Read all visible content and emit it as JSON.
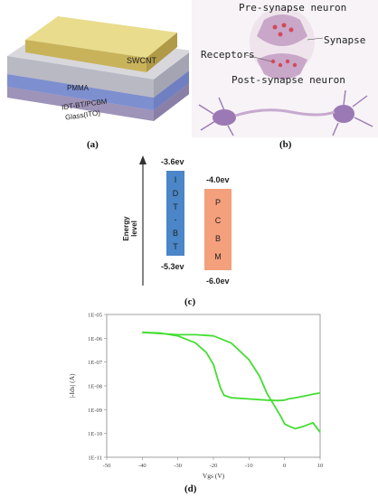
{
  "panel_a": {
    "labels": [
      "SWCNT",
      "PMMA",
      "IDT-BT/PCBM",
      "Glass(ITO)"
    ],
    "caption": "(a)"
  },
  "panel_b": {
    "pre_label": "Pre-synapse neuron",
    "synapse_label": "Synapse",
    "receptors_label": "Receptors",
    "post_label": "Post-synapse neuron",
    "caption": "(b)"
  },
  "panel_c": {
    "axis_label": "Energy level",
    "idt": {
      "top": "-3.6ev",
      "bottom": "-5.3ev",
      "chars": [
        "I",
        "D",
        "T",
        "-",
        "B",
        "T"
      ],
      "color": "#4a86c8"
    },
    "pcbm": {
      "top": "-4.0ev",
      "bottom": "-6.0ev",
      "chars": [
        "P",
        "C",
        "B",
        "M"
      ],
      "color": "#f4a07c"
    },
    "caption": "(c)"
  },
  "panel_d": {
    "caption": "(d)",
    "chart_data": {
      "type": "line",
      "xlabel": "Vgs (V)",
      "ylabel": "|-Ids| (A)",
      "xlim": [
        -50,
        10
      ],
      "ylim_log10": [
        -11,
        -5
      ],
      "xticks": [
        "-50",
        "-40",
        "-30",
        "-20",
        "-10",
        "0",
        "10"
      ],
      "yticks": [
        "1E-11",
        "1E-10",
        "1E-09",
        "1E-08",
        "1E-07",
        "1E-06",
        "1E-05"
      ],
      "log_y": true,
      "grid": false,
      "color": "#44dd33",
      "series": [
        {
          "x": [
            -40,
            -35,
            -30,
            -25,
            -20,
            -15,
            -10,
            -7,
            -5,
            -3,
            -1,
            0,
            1,
            3,
            5,
            8,
            10
          ],
          "log10_y": [
            -5.75,
            -5.8,
            -5.85,
            -5.85,
            -5.9,
            -6.2,
            -6.9,
            -7.6,
            -8.3,
            -8.8,
            -9.3,
            -9.6,
            -9.68,
            -9.8,
            -9.72,
            -9.55,
            -9.95
          ]
        },
        {
          "x": [
            10,
            8,
            5,
            3,
            1,
            0,
            -2,
            -5,
            -10,
            -15,
            -17,
            -18,
            -19,
            -20,
            -22,
            -25,
            -30,
            -35,
            -40
          ],
          "log10_y": [
            -8.3,
            -8.35,
            -8.45,
            -8.5,
            -8.55,
            -8.6,
            -8.62,
            -8.6,
            -8.55,
            -8.5,
            -8.4,
            -8.1,
            -7.6,
            -7.1,
            -6.6,
            -6.2,
            -5.9,
            -5.78,
            -5.75
          ]
        }
      ]
    }
  }
}
